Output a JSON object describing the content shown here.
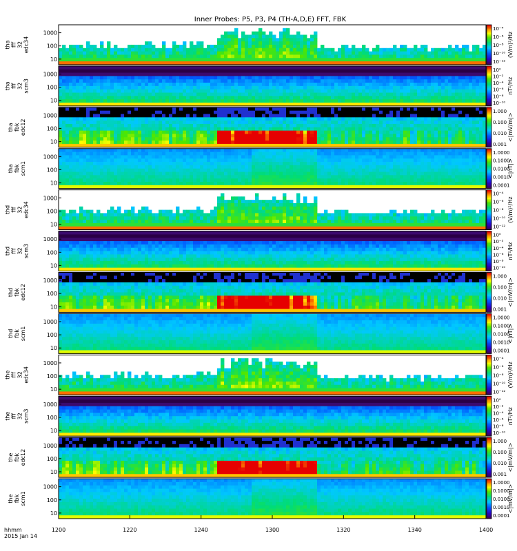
{
  "title": "Inner Probes: P5, P3, P4 (TH-A,D,E) FFT, FBK",
  "time_label": "hhmm",
  "date_label": "2015 Jan 14",
  "x_ticks": [
    "1200",
    "1220",
    "1240",
    "1300",
    "1320",
    "1340",
    "1400"
  ],
  "chart_data": {
    "type": "heatmap",
    "title": "Inner Probes: P5, P3, P4 (TH-A,D,E) FFT, FBK",
    "xlabel": "hhmm",
    "x_range": [
      "12:00",
      "14:00"
    ],
    "x_ticks": [
      "1200",
      "1220",
      "1240",
      "1300",
      "1320",
      "1340",
      "1400"
    ],
    "y_scale": "log",
    "y_ticks": [
      "10",
      "100",
      "1000"
    ],
    "colormap": "rainbow (purple-blue-cyan-green-yellow-red)",
    "panels": [
      {
        "probe": "tha",
        "label": [
          "tha",
          "fff",
          "32",
          "edc34"
        ],
        "kind": "fff_e",
        "unit": "(V/m)²/Hz",
        "cbar_ticks": [
          "10⁻⁴",
          "10⁻⁶",
          "10⁻⁸",
          "10⁻¹⁰",
          "10⁻¹²"
        ]
      },
      {
        "probe": "tha",
        "label": [
          "tha",
          "fff",
          "32",
          "scm3"
        ],
        "kind": "fff_b",
        "unit": "nT²/Hz",
        "cbar_ticks": [
          "10⁰",
          "10⁻²",
          "10⁻⁴",
          "10⁻⁶",
          "10⁻⁸",
          "10⁻¹⁰"
        ]
      },
      {
        "probe": "tha",
        "label": [
          "tha",
          "fbk",
          "edc12"
        ],
        "kind": "fbk_e",
        "unit": "<|mV/m|>",
        "cbar_ticks": [
          "1.000",
          "0.100",
          "0.010",
          "0.001"
        ]
      },
      {
        "probe": "tha",
        "label": [
          "tha",
          "fbk",
          "scm1"
        ],
        "kind": "fbk_b",
        "unit": "<|nT|>",
        "cbar_ticks": [
          "1.0000",
          "0.1000",
          "0.0100",
          "0.0010",
          "0.0001"
        ]
      },
      {
        "probe": "thd",
        "label": [
          "thd",
          "fff",
          "32",
          "edc34"
        ],
        "kind": "fff_e",
        "unit": "(V/m)²/Hz",
        "cbar_ticks": [
          "10⁻⁴",
          "10⁻⁶",
          "10⁻⁸",
          "10⁻¹⁰",
          "10⁻¹²"
        ]
      },
      {
        "probe": "thd",
        "label": [
          "thd",
          "fff",
          "32",
          "scm3"
        ],
        "kind": "fff_b",
        "unit": "nT²/Hz",
        "cbar_ticks": [
          "10⁰",
          "10⁻²",
          "10⁻⁴",
          "10⁻⁶",
          "10⁻⁸",
          "10⁻¹⁰"
        ]
      },
      {
        "probe": "thd",
        "label": [
          "thd",
          "fbk",
          "edc12"
        ],
        "kind": "fbk_e",
        "unit": "<|mV/m|>",
        "cbar_ticks": [
          "1.000",
          "0.100",
          "0.010",
          "0.001"
        ]
      },
      {
        "probe": "thd",
        "label": [
          "thd",
          "fbk",
          "scm1"
        ],
        "kind": "fbk_b",
        "unit": "<|nT|>",
        "cbar_ticks": [
          "1.0000",
          "0.1000",
          "0.0100",
          "0.0010",
          "0.0001"
        ]
      },
      {
        "probe": "the",
        "label": [
          "the",
          "fff",
          "32",
          "edc34"
        ],
        "kind": "fff_e",
        "unit": "(V/m)²/Hz",
        "cbar_ticks": [
          "10⁻⁴",
          "10⁻⁶",
          "10⁻⁸",
          "10⁻¹⁰",
          "10⁻¹²"
        ]
      },
      {
        "probe": "the",
        "label": [
          "the",
          "fff",
          "32",
          "scm3"
        ],
        "kind": "fff_b",
        "unit": "nT²/Hz",
        "cbar_ticks": [
          "10⁰",
          "10⁻²",
          "10⁻⁴",
          "10⁻⁶",
          "10⁻⁸",
          "10⁻¹⁰"
        ]
      },
      {
        "probe": "the",
        "label": [
          "the",
          "fbk",
          "edc12"
        ],
        "kind": "fbk_e",
        "unit": "<|mV/m|>",
        "cbar_ticks": [
          "1.000",
          "0.100",
          "0.010",
          "0.001"
        ]
      },
      {
        "probe": "the",
        "label": [
          "the",
          "fbk",
          "scm1"
        ],
        "kind": "fbk_b",
        "unit": "<|mV/m|>",
        "cbar_ticks": [
          "1.0000",
          "0.1000",
          "0.0100",
          "0.0010",
          "0.0001"
        ]
      }
    ]
  }
}
